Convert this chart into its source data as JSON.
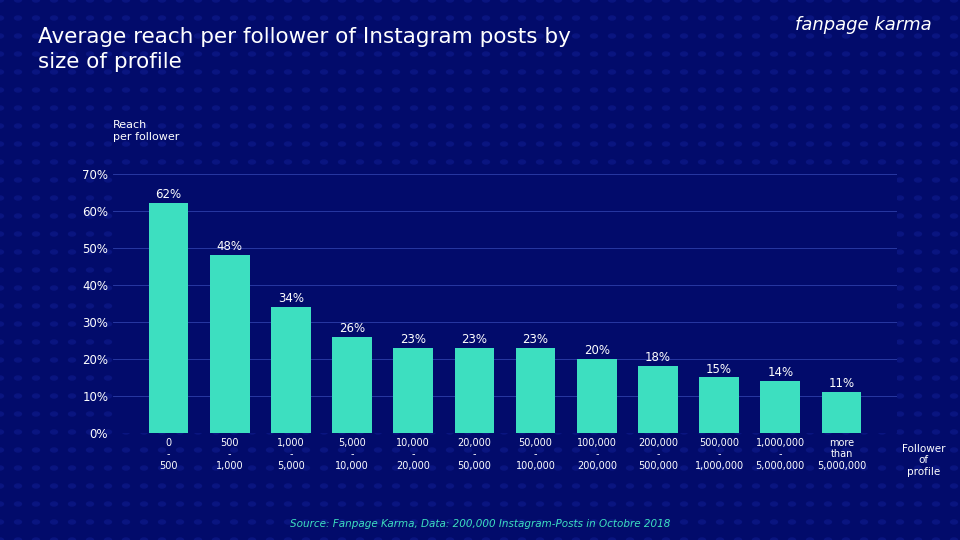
{
  "title": "Average reach per follower of Instagram posts by\nsize of profile",
  "ylabel_label": "Reach\nper follower",
  "xlabel_label": "Follower\nof\nprofile",
  "source": "Source: Fanpage Karma, Data: 200,000 Instagram-Posts in Octobre 2018",
  "brand": "fanpage karma",
  "categories": [
    "0\n-\n500",
    "500\n-\n1,000",
    "1,000\n-\n5,000",
    "5,000\n-\n10,000",
    "10,000\n-\n20,000",
    "20,000\n-\n50,000",
    "50,000\n-\n100,000",
    "100,000\n-\n200,000",
    "200,000\n-\n500,000",
    "500,000\n-\n1,000,000",
    "1,000,000\n-\n5,000,000",
    "more\nthan\n5,000,000"
  ],
  "values": [
    0.62,
    0.48,
    0.34,
    0.26,
    0.23,
    0.23,
    0.23,
    0.2,
    0.18,
    0.15,
    0.14,
    0.11
  ],
  "labels": [
    "62%",
    "48%",
    "34%",
    "26%",
    "23%",
    "23%",
    "23%",
    "20%",
    "18%",
    "15%",
    "14%",
    "11%"
  ],
  "bar_color": "#3DDFC0",
  "bg_color": "#020B6B",
  "dot_color": "#0A1580",
  "text_color": "#FFFFFF",
  "grid_color": "#2E3FAA",
  "source_color": "#3DDFC0",
  "ylim": [
    0,
    0.72
  ],
  "yticks": [
    0.0,
    0.1,
    0.2,
    0.3,
    0.4,
    0.5,
    0.6,
    0.7
  ],
  "ytick_labels": [
    "0%",
    "10%",
    "20%",
    "30%",
    "40%",
    "50%",
    "60%",
    "70%"
  ]
}
